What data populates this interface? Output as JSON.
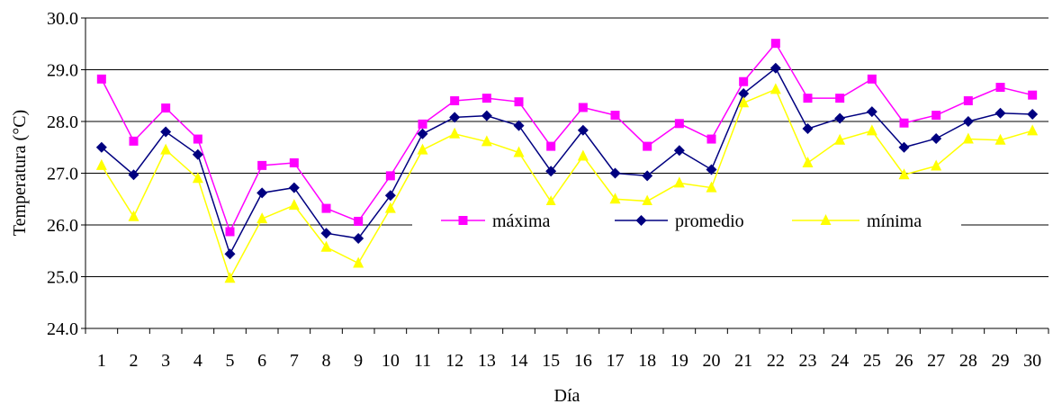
{
  "chart_data": {
    "type": "line",
    "title": "",
    "xlabel": "Día",
    "ylabel": "Temperatura (°C)",
    "ylim": [
      24.0,
      30.0
    ],
    "yticks": [
      "24.0",
      "25.0",
      "26.0",
      "27.0",
      "28.0",
      "29.0",
      "30.0"
    ],
    "grid": "horizontal",
    "legend_position": "inside-center",
    "categories": [
      "1",
      "2",
      "3",
      "4",
      "5",
      "6",
      "7",
      "8",
      "9",
      "10",
      "11",
      "12",
      "13",
      "14",
      "15",
      "16",
      "17",
      "18",
      "19",
      "20",
      "21",
      "22",
      "23",
      "24",
      "25",
      "26",
      "27",
      "28",
      "29",
      "30"
    ],
    "series": [
      {
        "name": "máxima",
        "color": "#ff00ff",
        "marker": "square",
        "values": [
          28.82,
          27.62,
          28.26,
          27.66,
          25.87,
          27.15,
          27.2,
          26.32,
          26.07,
          26.95,
          27.95,
          28.4,
          28.45,
          28.38,
          27.52,
          28.27,
          28.12,
          27.52,
          27.96,
          27.66,
          28.77,
          29.51,
          28.45,
          28.45,
          28.82,
          27.97,
          28.12,
          28.4,
          28.66,
          28.51
        ]
      },
      {
        "name": "promedio",
        "color": "#000080",
        "marker": "diamond",
        "values": [
          27.5,
          26.97,
          27.8,
          27.36,
          25.44,
          26.62,
          26.72,
          25.84,
          25.74,
          26.57,
          27.76,
          28.08,
          28.11,
          27.92,
          27.04,
          27.83,
          27.0,
          26.95,
          27.44,
          27.07,
          28.54,
          29.03,
          27.86,
          28.06,
          28.19,
          27.5,
          27.67,
          28.0,
          28.16,
          28.14
        ]
      },
      {
        "name": "mínima",
        "color": "#ffff00",
        "marker": "triangle",
        "values": [
          27.15,
          26.16,
          27.45,
          26.9,
          24.97,
          26.12,
          26.38,
          25.57,
          25.26,
          26.32,
          27.45,
          27.76,
          27.61,
          27.4,
          26.45,
          27.33,
          26.5,
          26.46,
          26.81,
          26.72,
          28.36,
          28.62,
          27.2,
          27.64,
          27.82,
          26.97,
          27.14,
          27.66,
          27.64,
          27.82
        ]
      }
    ]
  }
}
